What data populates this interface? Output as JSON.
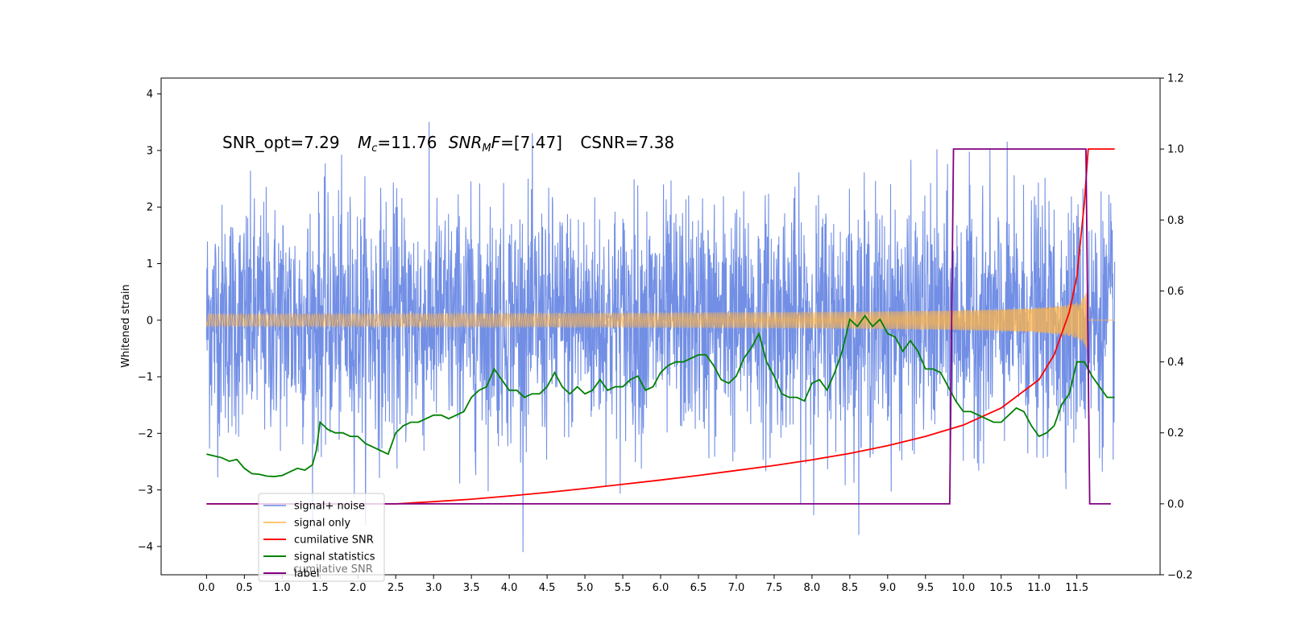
{
  "chart_data": {
    "type": "line",
    "title": "",
    "xlabel": "",
    "ylabel": "Whitened strain",
    "xlim": [
      -0.6,
      12.6
    ],
    "ylim": [
      -4.5,
      4.28
    ],
    "y2lim": [
      -0.2,
      1.2
    ],
    "grid": false,
    "legend_position": "lower-left",
    "x_ticks": [
      "0.0",
      "0.5",
      "1.0",
      "1.5",
      "2.0",
      "2.5",
      "3.0",
      "3.5",
      "4.0",
      "4.5",
      "5.0",
      "5.5",
      "6.0",
      "6.5",
      "7.0",
      "7.5",
      "8.0",
      "8.5",
      "9.0",
      "9.5",
      "10.0",
      "10.5",
      "11.0",
      "11.5"
    ],
    "y_ticks": [
      "4",
      "3",
      "2",
      "1",
      "0",
      "−1",
      "−2",
      "−3",
      "−4"
    ],
    "y2_ticks": [
      "1.2",
      "1.0",
      "0.8",
      "0.6",
      "0.4",
      "0.2",
      "0.0",
      "−0.2"
    ],
    "annotation": {
      "snr_opt": "SNR_opt=7.29",
      "mc_symbol": "M",
      "mc_sub": "c",
      "mc_value": "=11.76",
      "snr_mf_symbol": "SNR",
      "snr_mf_sub": "M",
      "snr_mf_f": "F",
      "snr_mf_value": "=[7.47]",
      "csnr": "CSNR=7.38"
    },
    "series": [
      {
        "name": "signal+ noise",
        "color": "#6a89e4",
        "axis": "left",
        "kind": "noise",
        "x_range": [
          0.0,
          12.0
        ],
        "amplitude_range": [
          -4.1,
          3.85
        ]
      },
      {
        "name": "signal only",
        "color": "#ffb347",
        "axis": "left",
        "kind": "chirp",
        "x_range": [
          0.0,
          12.0
        ],
        "peak_amplitude": 0.8,
        "merger_x": 11.65
      },
      {
        "name": "cumilative SNR",
        "color": "#ff0000",
        "axis": "right",
        "x": [
          0.0,
          2.5,
          3.0,
          3.5,
          4.0,
          4.5,
          5.0,
          5.5,
          6.0,
          6.5,
          7.0,
          7.5,
          8.0,
          8.5,
          9.0,
          9.5,
          10.0,
          10.5,
          11.0,
          11.2,
          11.4,
          11.5,
          11.6,
          11.65,
          11.7,
          12.0
        ],
        "y": [
          0.0,
          0.0,
          0.006,
          0.013,
          0.022,
          0.032,
          0.043,
          0.055,
          0.067,
          0.08,
          0.094,
          0.108,
          0.124,
          0.142,
          0.164,
          0.19,
          0.222,
          0.27,
          0.35,
          0.42,
          0.54,
          0.64,
          0.85,
          1.0,
          1.0,
          1.0
        ]
      },
      {
        "name": "signal statistics",
        "color": "#008000",
        "axis": "right",
        "x": [
          0.0,
          0.1,
          0.2,
          0.3,
          0.4,
          0.5,
          0.6,
          0.7,
          0.8,
          0.9,
          1.0,
          1.1,
          1.2,
          1.3,
          1.4,
          1.45,
          1.5,
          1.55,
          1.6,
          1.7,
          1.8,
          1.9,
          2.0,
          2.1,
          2.2,
          2.3,
          2.4,
          2.5,
          2.6,
          2.7,
          2.8,
          2.9,
          3.0,
          3.1,
          3.2,
          3.3,
          3.4,
          3.5,
          3.6,
          3.7,
          3.8,
          3.9,
          4.0,
          4.1,
          4.2,
          4.3,
          4.4,
          4.5,
          4.6,
          4.7,
          4.8,
          4.9,
          5.0,
          5.1,
          5.2,
          5.3,
          5.4,
          5.5,
          5.6,
          5.7,
          5.8,
          5.9,
          6.0,
          6.1,
          6.2,
          6.3,
          6.4,
          6.5,
          6.6,
          6.7,
          6.8,
          6.9,
          7.0,
          7.1,
          7.2,
          7.3,
          7.4,
          7.5,
          7.6,
          7.7,
          7.8,
          7.9,
          8.0,
          8.1,
          8.2,
          8.3,
          8.4,
          8.5,
          8.6,
          8.7,
          8.8,
          8.9,
          9.0,
          9.1,
          9.2,
          9.3,
          9.4,
          9.5,
          9.6,
          9.7,
          9.8,
          9.9,
          10.0,
          10.1,
          10.2,
          10.3,
          10.4,
          10.5,
          10.6,
          10.7,
          10.8,
          10.9,
          11.0,
          11.1,
          11.2,
          11.3,
          11.4,
          11.5,
          11.6,
          11.7,
          11.8,
          11.9,
          12.0
        ],
        "y": [
          0.14,
          0.135,
          0.13,
          0.12,
          0.125,
          0.1,
          0.085,
          0.083,
          0.078,
          0.077,
          0.08,
          0.09,
          0.1,
          0.095,
          0.11,
          0.15,
          0.23,
          0.22,
          0.21,
          0.2,
          0.2,
          0.19,
          0.19,
          0.17,
          0.16,
          0.15,
          0.14,
          0.2,
          0.22,
          0.23,
          0.23,
          0.24,
          0.25,
          0.25,
          0.24,
          0.25,
          0.26,
          0.3,
          0.32,
          0.33,
          0.38,
          0.35,
          0.32,
          0.32,
          0.3,
          0.31,
          0.31,
          0.33,
          0.37,
          0.33,
          0.31,
          0.33,
          0.31,
          0.32,
          0.35,
          0.32,
          0.33,
          0.33,
          0.35,
          0.36,
          0.32,
          0.33,
          0.37,
          0.39,
          0.4,
          0.4,
          0.41,
          0.42,
          0.42,
          0.39,
          0.35,
          0.34,
          0.36,
          0.41,
          0.44,
          0.48,
          0.4,
          0.36,
          0.31,
          0.3,
          0.3,
          0.29,
          0.34,
          0.35,
          0.32,
          0.37,
          0.43,
          0.52,
          0.5,
          0.53,
          0.5,
          0.52,
          0.48,
          0.47,
          0.43,
          0.46,
          0.43,
          0.38,
          0.38,
          0.37,
          0.33,
          0.29,
          0.26,
          0.26,
          0.25,
          0.24,
          0.23,
          0.23,
          0.25,
          0.27,
          0.26,
          0.22,
          0.19,
          0.2,
          0.22,
          0.28,
          0.31,
          0.4,
          0.4,
          0.36,
          0.33,
          0.3,
          0.3
        ]
      },
      {
        "name": "label",
        "color": "#800080",
        "axis": "right",
        "x": [
          0.0,
          9.82,
          9.87,
          11.62,
          11.67,
          11.95
        ],
        "y": [
          0.0,
          0.0,
          1.0,
          1.0,
          0.0,
          0.0
        ]
      }
    ],
    "legend_entries": [
      "signal+ noise",
      "signal only",
      "cumilative SNR",
      "signal statistics",
      "label"
    ],
    "legend_ghost_text": "cumilative SNR"
  }
}
